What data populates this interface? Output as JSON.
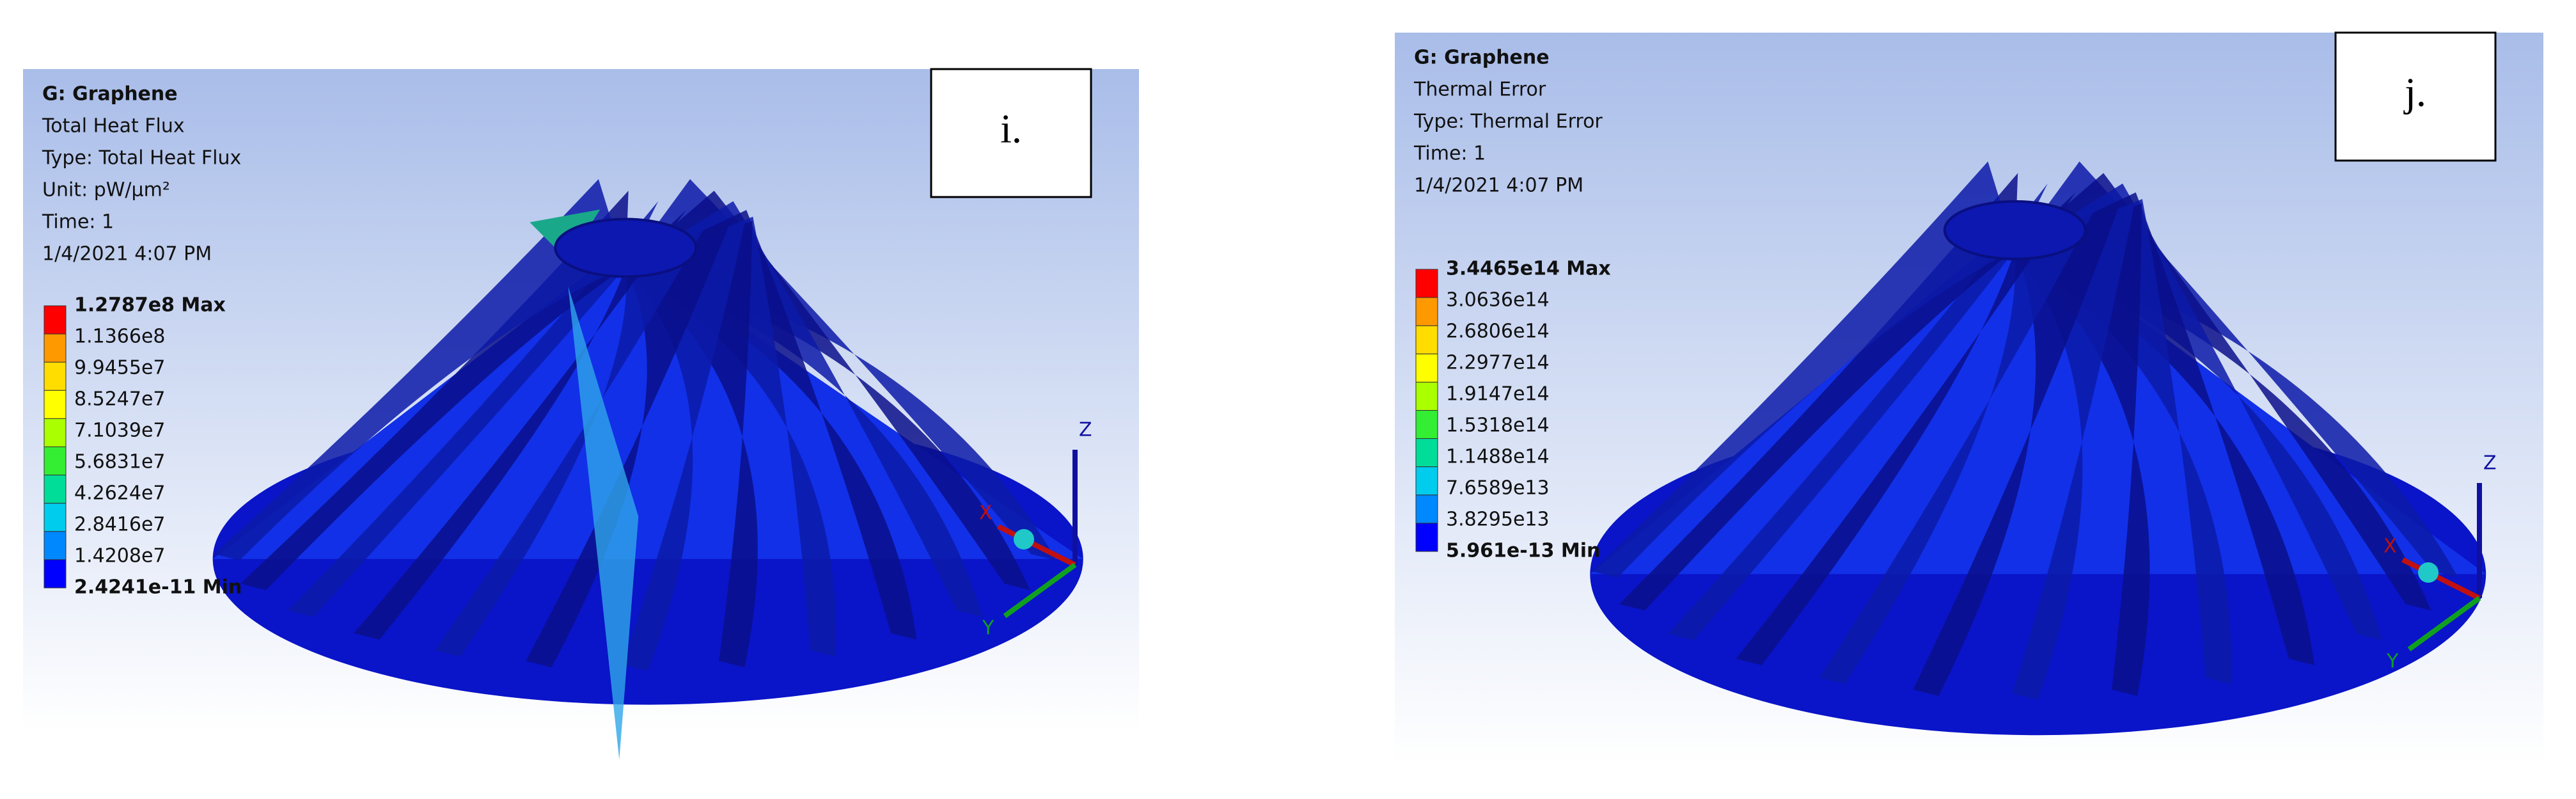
{
  "panels": [
    {
      "label": "i.",
      "header": [
        "G: Graphene",
        "Total Heat Flux",
        "Type: Total Heat Flux",
        "Unit: pW/µm²",
        "Time: 1",
        "1/4/2021 4:07 PM"
      ],
      "legend": {
        "labels": [
          "1.2787e8 Max",
          "1.1366e8",
          "9.9455e7",
          "8.5247e7",
          "7.1039e7",
          "5.6831e7",
          "4.2624e7",
          "2.8416e7",
          "1.4208e7",
          "2.4241e-11 Min"
        ],
        "colors": [
          "#ff0000",
          "#ff9900",
          "#ffdd00",
          "#ffff00",
          "#aaff00",
          "#33ee33",
          "#00dd99",
          "#00ccee",
          "#0088ff",
          "#0000ff"
        ]
      },
      "triad": [
        "Z",
        "X",
        "Y"
      ]
    },
    {
      "label": "j.",
      "header": [
        "G: Graphene",
        "Thermal Error",
        "Type: Thermal Error",
        "Time: 1",
        "1/4/2021 4:07 PM"
      ],
      "legend": {
        "labels": [
          "3.4465e14 Max",
          "3.0636e14",
          "2.6806e14",
          "2.2977e14",
          "1.9147e14",
          "1.5318e14",
          "1.1488e14",
          "7.6589e13",
          "3.8295e13",
          "5.961e-13 Min"
        ],
        "colors": [
          "#ff0000",
          "#ff9900",
          "#ffdd00",
          "#ffff00",
          "#aaff00",
          "#33ee33",
          "#00dd99",
          "#00ccee",
          "#0088ff",
          "#0000ff"
        ]
      },
      "triad": [
        "Z",
        "X",
        "Y"
      ]
    }
  ]
}
